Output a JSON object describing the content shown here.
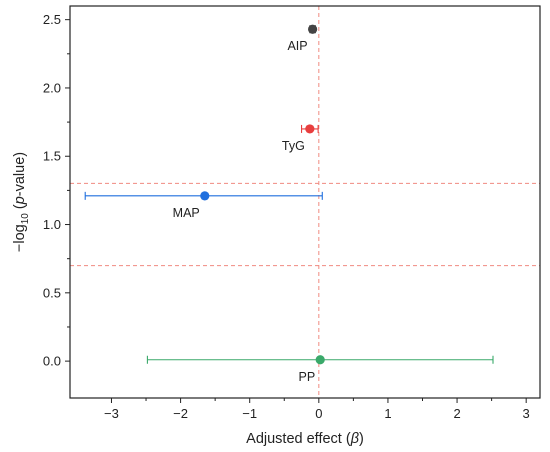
{
  "chart_data": {
    "type": "scatter",
    "xlabel_main": "Adjusted effect (",
    "xlabel_symbol": "β",
    "xlabel_close": ")",
    "ylabel_prefix": "−log",
    "ylabel_sub": "10",
    "ylabel_paren_open": " (",
    "ylabel_italic": "p",
    "ylabel_suffix": "-value)",
    "xlim": [
      -3.6,
      3.2
    ],
    "ylim": [
      -0.27,
      2.6
    ],
    "x_ticks": [
      -3,
      -2,
      -1,
      0,
      1,
      2,
      3
    ],
    "x_tick_labels": [
      "−3",
      "−2",
      "−1",
      "0",
      "1",
      "2",
      "3"
    ],
    "y_ticks": [
      0.0,
      0.5,
      1.0,
      1.5,
      2.0,
      2.5
    ],
    "y_tick_labels": [
      "0.0",
      "0.5",
      "1.0",
      "1.5",
      "2.0",
      "2.5"
    ],
    "reference_lines": {
      "vertical_x": 0,
      "horizontal_y": [
        1.301,
        0.699
      ],
      "color": "#f08a80",
      "style": "dashed"
    },
    "points": [
      {
        "label": "AIP",
        "x": -0.09,
        "y": 2.43,
        "ci_low": -0.13,
        "ci_high": -0.05,
        "color": "#444444",
        "label_position": "below-left"
      },
      {
        "label": "TyG",
        "x": -0.13,
        "y": 1.7,
        "ci_low": -0.25,
        "ci_high": -0.01,
        "color": "#e83e3e",
        "label_position": "below-left"
      },
      {
        "label": "MAP",
        "x": -1.65,
        "y": 1.21,
        "ci_low": -3.38,
        "ci_high": 0.05,
        "color": "#1f6fde",
        "label_position": "below-left"
      },
      {
        "label": "PP",
        "x": 0.02,
        "y": 0.01,
        "ci_low": -2.48,
        "ci_high": 2.52,
        "color": "#3aa96a",
        "label_position": "below-left"
      }
    ]
  }
}
